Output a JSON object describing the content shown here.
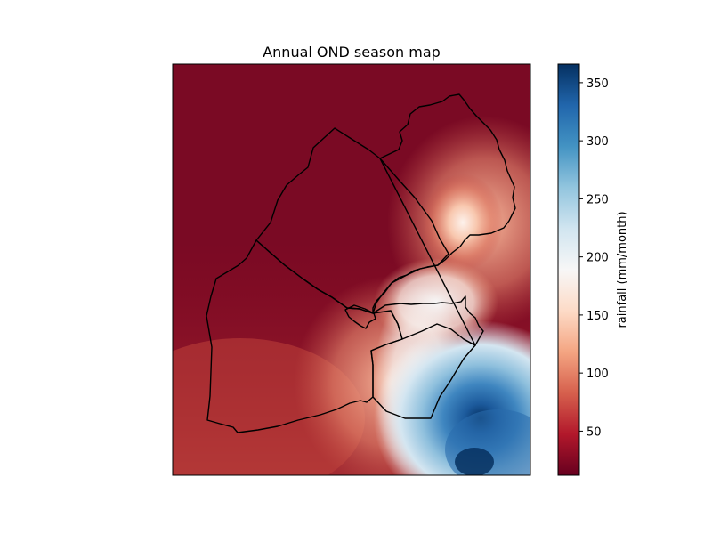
{
  "figure": {
    "title": "Annual OND season map"
  },
  "map": {
    "region_outline_color": "#000000",
    "field_description_colormap": "RdBu"
  },
  "colorbar": {
    "label": "rainfall (mm/month)",
    "min": 12,
    "max": 366,
    "ticks": [
      50,
      100,
      150,
      200,
      250,
      300,
      350
    ],
    "tick_labels": [
      "50",
      "100",
      "150",
      "200",
      "250",
      "300",
      "350"
    ],
    "colors": [
      "#67001f",
      "#b2182b",
      "#d6604d",
      "#f4a582",
      "#fddbc7",
      "#f7f7f7",
      "#d1e5f0",
      "#92c5de",
      "#4393c3",
      "#2166ac",
      "#053061"
    ]
  }
}
